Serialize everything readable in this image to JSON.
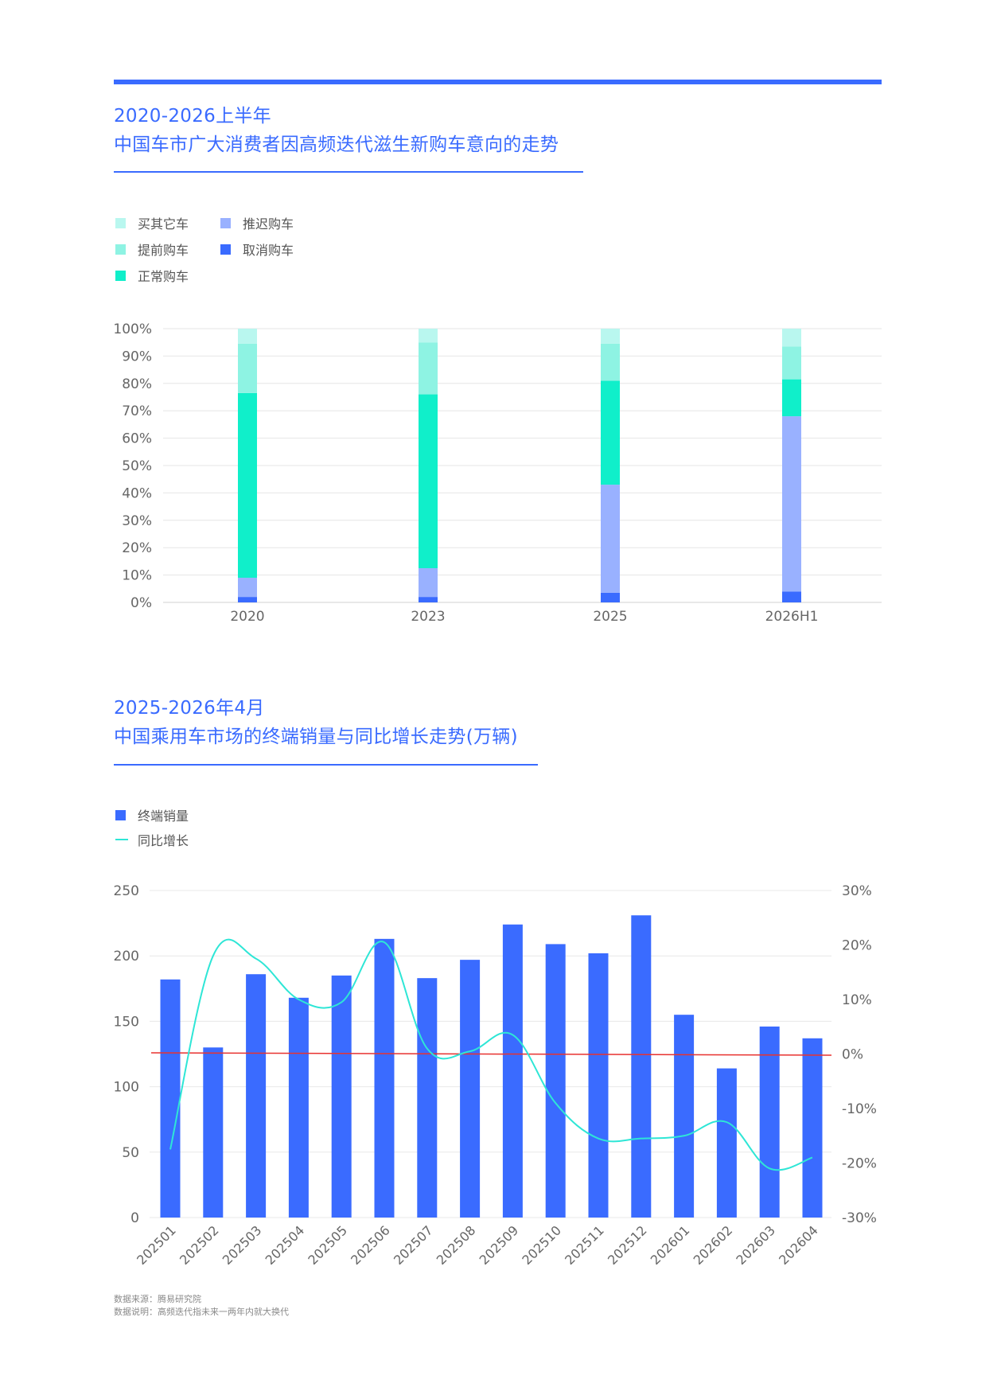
{
  "section1": {
    "title_line1": "2020-2026上半年",
    "title_line2": "中国车市广大消费者因高频迭代滋生新购车意向的走势",
    "legend": [
      {
        "label": "买其它车",
        "color": "#b9f7ef"
      },
      {
        "label": "推迟购车",
        "color": "#99b1ff"
      },
      {
        "label": "提前购车",
        "color": "#8ef3e3"
      },
      {
        "label": "取消购车",
        "color": "#3a6bff"
      },
      {
        "label": "正常购车",
        "color": "#10efca"
      }
    ]
  },
  "section2": {
    "title_line1": "2025-2026年4月",
    "title_line2": "中国乘用车市场的终端销量与同比增长走势(万辆)",
    "legend": [
      {
        "label": "终端销量",
        "color": "#3a6bff"
      },
      {
        "label": "同比增长",
        "color": "#2ee6d6"
      }
    ]
  },
  "chart_data": [
    {
      "type": "bar",
      "stacked": true,
      "categories": [
        "2020",
        "2023",
        "2025",
        "2026H1"
      ],
      "y_ticks": [
        "0%",
        "10%",
        "20%",
        "30%",
        "40%",
        "50%",
        "60%",
        "70%",
        "80%",
        "90%",
        "100%"
      ],
      "ylim": [
        0,
        100
      ],
      "series": [
        {
          "name": "取消购车",
          "color": "#3a6bff",
          "values": [
            2,
            2,
            3.5,
            4
          ]
        },
        {
          "name": "推迟购车",
          "color": "#99b1ff",
          "values": [
            7,
            10.5,
            39.5,
            64
          ]
        },
        {
          "name": "正常购车",
          "color": "#10efca",
          "values": [
            67.5,
            63.5,
            38,
            13.5
          ]
        },
        {
          "name": "提前购车",
          "color": "#8ef3e3",
          "values": [
            18,
            19,
            13.5,
            12
          ]
        },
        {
          "name": "买其它车",
          "color": "#b9f7ef",
          "values": [
            5.5,
            5,
            5.5,
            6.5
          ]
        }
      ],
      "grid": true
    },
    {
      "type": "bar+line",
      "categories": [
        "202501",
        "202502",
        "202503",
        "202504",
        "202505",
        "202506",
        "202507",
        "202508",
        "202509",
        "202510",
        "202511",
        "202512",
        "202601",
        "202602",
        "202603",
        "202604"
      ],
      "bar_series": {
        "name": "终端销量",
        "color": "#3a6bff",
        "values": [
          182,
          130,
          186,
          168,
          185,
          213,
          183,
          197,
          224,
          209,
          202,
          231,
          155,
          114,
          146,
          137
        ]
      },
      "line_series": {
        "name": "同比增长",
        "color": "#2ee6d6",
        "values": [
          -17.5,
          18,
          17.5,
          10,
          9.5,
          20.5,
          1,
          0.5,
          3.5,
          -9,
          -15.5,
          -15.5,
          -15,
          -12.5,
          -21,
          -19
        ]
      },
      "left_ticks": [
        "0",
        "50",
        "100",
        "150",
        "200",
        "250"
      ],
      "left_ylim": [
        0,
        250
      ],
      "right_ticks": [
        "-30%",
        "-20%",
        "-10%",
        "0%",
        "10%",
        "20%",
        "30%"
      ],
      "right_ylim": [
        -30,
        30
      ],
      "zero_line_color": "#e8322f",
      "grid": true
    }
  ],
  "notes": {
    "line1": "数据来源：腾易研究院",
    "line2": "数据说明：高频迭代指未来一两年内就大换代"
  }
}
